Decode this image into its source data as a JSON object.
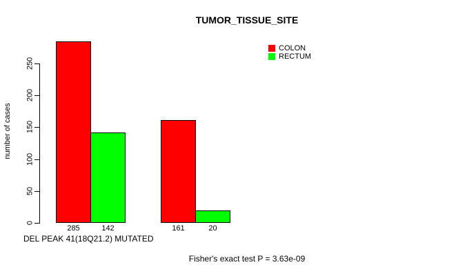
{
  "chart_data": {
    "type": "bar",
    "title": "TUMOR_TISSUE_SITE",
    "ylabel": "number of cases",
    "xlabel": "DEL PEAK 41(18Q21.2) MUTATED",
    "footnote": "Fisher's exact test P = 3.63e-09",
    "series": [
      {
        "name": "COLON",
        "color": "#ff0000",
        "values": [
          285,
          161
        ]
      },
      {
        "name": "RECTUM",
        "color": "#00ff00",
        "values": [
          142,
          20
        ]
      }
    ],
    "group_count": 2,
    "yticks": [
      0,
      50,
      100,
      150,
      200,
      250
    ],
    "ylim": [
      0,
      285
    ],
    "grid": false,
    "legend_position": "top-right",
    "bar_border_color": "#000000",
    "axis_color": "#000000",
    "background_color": "#ffffff"
  }
}
